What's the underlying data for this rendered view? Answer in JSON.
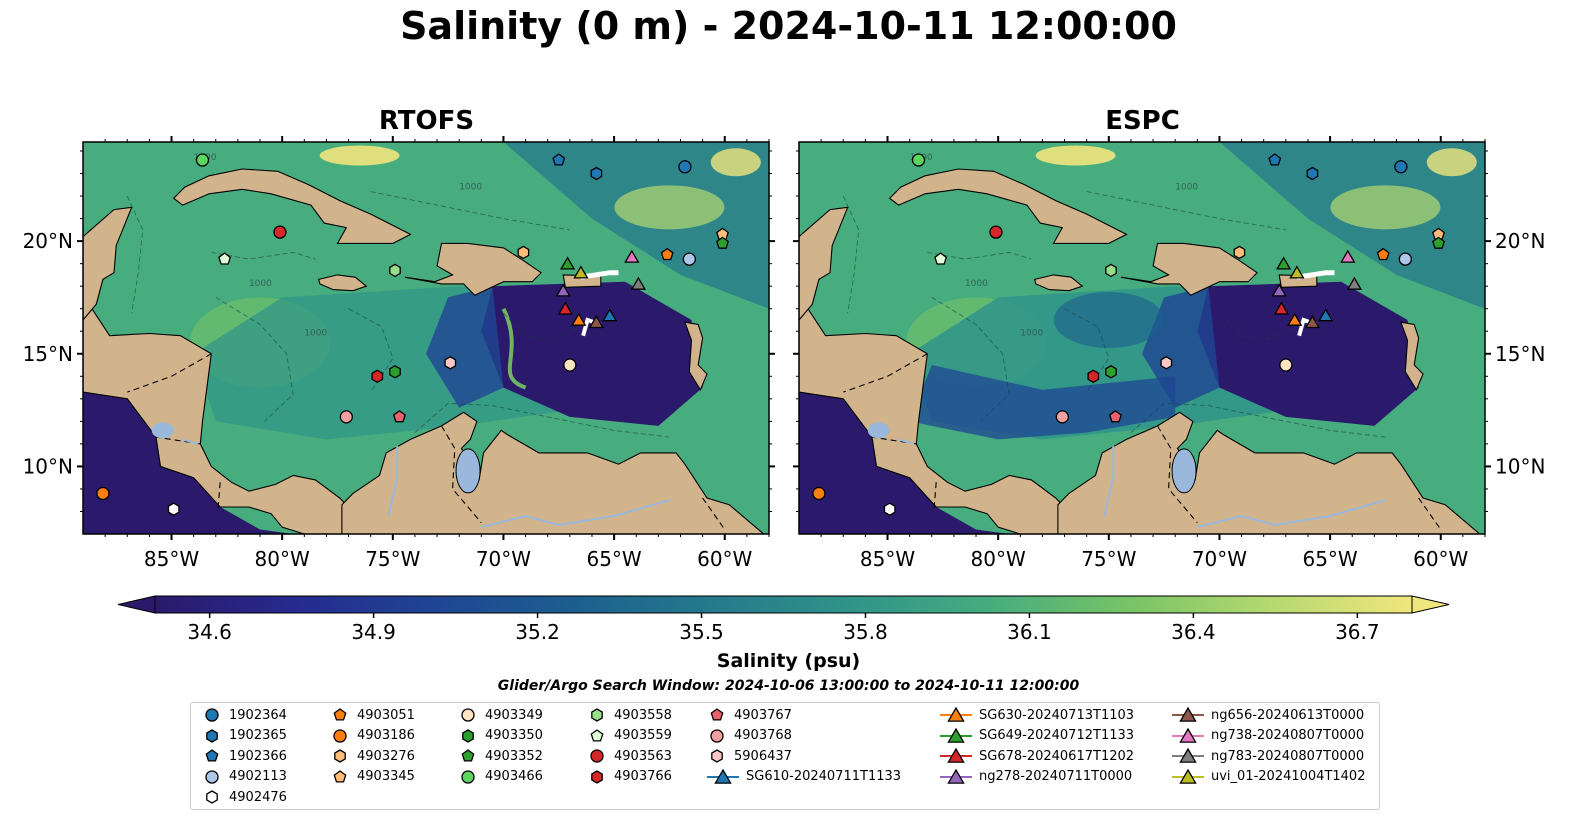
{
  "title": "Salinity (0 m) - 2024-10-11 12:00:00",
  "panels": [
    {
      "name": "RTOFS"
    },
    {
      "name": "ESPC"
    }
  ],
  "map": {
    "lon_ticks": [
      "85°W",
      "80°W",
      "75°W",
      "70°W",
      "65°W",
      "60°W"
    ],
    "lat_ticks": [
      "20°N",
      "15°N",
      "10°N"
    ],
    "extent": {
      "lon": [
        -89,
        -58
      ],
      "lat": [
        7,
        24.4
      ]
    },
    "land_color": "#d2b48c",
    "contour_label": "1000"
  },
  "colorbar": {
    "label": "Salinity (psu)",
    "ticks": [
      "34.6",
      "34.9",
      "35.2",
      "35.5",
      "35.8",
      "36.1",
      "36.4",
      "36.7"
    ],
    "range": [
      34.5,
      36.8
    ],
    "colormap": [
      "#2b1a6b",
      "#262a8f",
      "#1f4594",
      "#1c5f8f",
      "#267a8c",
      "#309489",
      "#47ad7e",
      "#79c466",
      "#b6d970",
      "#f0e67d"
    ]
  },
  "search_window": "Glider/Argo Search Window: 2024-10-06 13:00:00 to 2024-10-11 12:00:00",
  "legend": [
    {
      "label": "1902364",
      "marker": "circle",
      "color": "#1f77b4"
    },
    {
      "label": "1902365",
      "marker": "hexagon",
      "color": "#1f77b4"
    },
    {
      "label": "1902366",
      "marker": "pentagon",
      "color": "#1f77b4"
    },
    {
      "label": "4902113",
      "marker": "circle",
      "color": "#aec7e8"
    },
    {
      "label": "4902476",
      "marker": "hexagon",
      "color": "#ffffff"
    },
    {
      "label": "4903051",
      "marker": "pentagon",
      "color": "#ff7f0e"
    },
    {
      "label": "4903186",
      "marker": "circle",
      "color": "#ff7f0e"
    },
    {
      "label": "4903276",
      "marker": "hexagon",
      "color": "#ffbb78"
    },
    {
      "label": "4903345",
      "marker": "pentagon",
      "color": "#ffbb78"
    },
    {
      "label": "4903349",
      "marker": "circle",
      "color": "#ffe4c4"
    },
    {
      "label": "4903350",
      "marker": "hexagon",
      "color": "#2ca02c"
    },
    {
      "label": "4903352",
      "marker": "pentagon",
      "color": "#2ca02c"
    },
    {
      "label": "4903466",
      "marker": "circle",
      "color": "#5cd65c"
    },
    {
      "label": "4903558",
      "marker": "hexagon",
      "color": "#98df8a"
    },
    {
      "label": "4903559",
      "marker": "pentagon",
      "color": "#e0ffd8"
    },
    {
      "label": "4903563",
      "marker": "circle",
      "color": "#d62728"
    },
    {
      "label": "4903766",
      "marker": "hexagon",
      "color": "#d62728"
    },
    {
      "label": "4903767",
      "marker": "pentagon",
      "color": "#e8636b"
    },
    {
      "label": "4903768",
      "marker": "circle",
      "color": "#f4a0a0"
    },
    {
      "label": "5906437",
      "marker": "hexagon",
      "color": "#ffc8c8"
    },
    {
      "label": "SG610-20240711T1133",
      "marker": "triangle",
      "color": "#1f77b4"
    },
    {
      "label": "SG630-20240713T1103",
      "marker": "triangle",
      "color": "#ff7f0e"
    },
    {
      "label": "SG649-20240712T1133",
      "marker": "triangle",
      "color": "#2ca02c"
    },
    {
      "label": "SG678-20240617T1202",
      "marker": "triangle",
      "color": "#d62728"
    },
    {
      "label": "ng278-20240711T0000",
      "marker": "triangle",
      "color": "#9467bd"
    },
    {
      "label": "ng656-20240613T0000",
      "marker": "triangle",
      "color": "#8c564b"
    },
    {
      "label": "ng738-20240807T0000",
      "marker": "triangle",
      "color": "#e377c2"
    },
    {
      "label": "ng783-20240807T0000",
      "marker": "triangle",
      "color": "#7f7f7f"
    },
    {
      "label": "uvi_01-20241004T1402",
      "marker": "triangle",
      "color": "#bcbd22"
    }
  ],
  "observations": [
    {
      "id": "1902364",
      "lon": -61.8,
      "lat": 23.3
    },
    {
      "id": "1902365",
      "lon": -65.8,
      "lat": 23.0
    },
    {
      "id": "1902366",
      "lon": -67.5,
      "lat": 23.6
    },
    {
      "id": "4902113",
      "lon": -61.6,
      "lat": 19.2
    },
    {
      "id": "4902476",
      "lon": -84.9,
      "lat": 8.1
    },
    {
      "id": "4903051",
      "lon": -62.6,
      "lat": 19.4
    },
    {
      "id": "4903186",
      "lon": -88.1,
      "lat": 8.8
    },
    {
      "id": "4903276",
      "lon": -69.1,
      "lat": 19.5
    },
    {
      "id": "4903345",
      "lon": -60.1,
      "lat": 20.3
    },
    {
      "id": "4903349",
      "lon": -67.0,
      "lat": 14.5
    },
    {
      "id": "4903350",
      "lon": -74.9,
      "lat": 14.2
    },
    {
      "id": "4903352",
      "lon": -60.1,
      "lat": 19.9
    },
    {
      "id": "4903466",
      "lon": -83.6,
      "lat": 23.6
    },
    {
      "id": "4903558",
      "lon": -74.9,
      "lat": 18.7
    },
    {
      "id": "4903559",
      "lon": -82.6,
      "lat": 19.2
    },
    {
      "id": "4903563",
      "lon": -80.1,
      "lat": 20.4
    },
    {
      "id": "4903766",
      "lon": -75.7,
      "lat": 14.0
    },
    {
      "id": "4903767",
      "lon": -74.7,
      "lat": 12.2
    },
    {
      "id": "4903768",
      "lon": -77.1,
      "lat": 12.2
    },
    {
      "id": "5906437",
      "lon": -72.4,
      "lat": 14.6
    },
    {
      "id": "SG610-20240711T1133",
      "lon": -65.2,
      "lat": 16.7
    },
    {
      "id": "SG630-20240713T1103",
      "lon": -66.6,
      "lat": 16.5
    },
    {
      "id": "SG649-20240712T1133",
      "lon": -67.1,
      "lat": 19.0
    },
    {
      "id": "SG678-20240617T1202",
      "lon": -67.2,
      "lat": 17.0
    },
    {
      "id": "ng278-20240711T0000",
      "lon": -67.3,
      "lat": 17.8
    },
    {
      "id": "ng656-20240613T0000",
      "lon": -65.8,
      "lat": 16.4
    },
    {
      "id": "ng738-20240807T0000",
      "lon": -64.2,
      "lat": 19.3
    },
    {
      "id": "ng783-20240807T0000",
      "lon": -63.9,
      "lat": 18.1
    },
    {
      "id": "uvi_01-20241004T1402",
      "lon": -66.5,
      "lat": 18.6
    }
  ]
}
